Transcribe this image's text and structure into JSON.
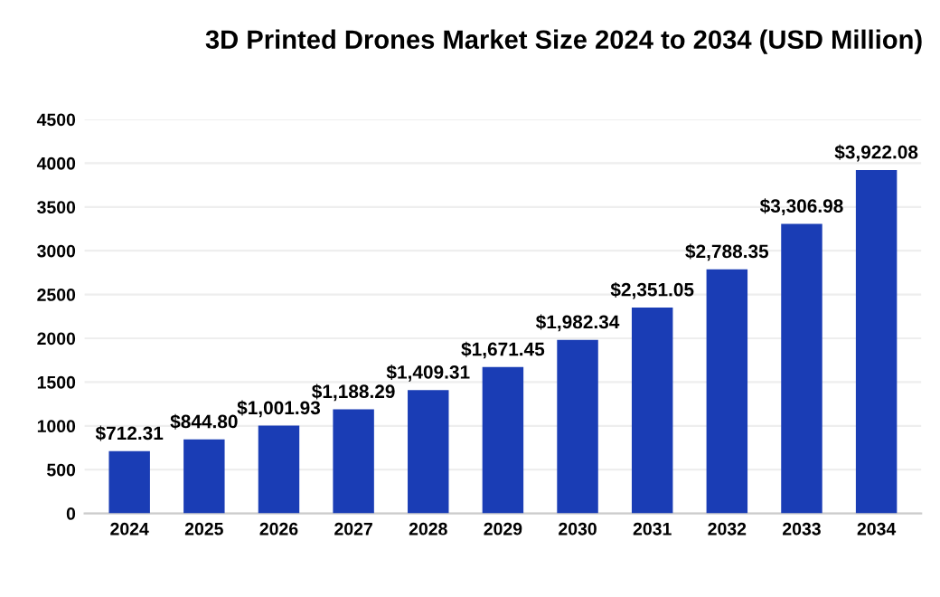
{
  "chart_data": {
    "type": "bar",
    "title": "3D Printed Drones Market Size 2024 to 2034 (USD Million)",
    "categories": [
      "2024",
      "2025",
      "2026",
      "2027",
      "2028",
      "2029",
      "2030",
      "2031",
      "2032",
      "2033",
      "2034"
    ],
    "values": [
      712.31,
      844.8,
      1001.93,
      1188.29,
      1409.31,
      1671.45,
      1982.34,
      2351.05,
      2788.35,
      3306.98,
      3922.08
    ],
    "value_labels": [
      "$712.31",
      "$844.80",
      "$1,001.93",
      "$1,188.29",
      "$1,409.31",
      "$1,671.45",
      "$1,982.34",
      "$2,351.05",
      "$2,788.35",
      "$3,306.98",
      "$3,922.08"
    ],
    "color": "#1a3db5",
    "ylim": [
      0,
      4500
    ],
    "yticks": [
      0,
      500,
      1000,
      1500,
      2000,
      2500,
      3000,
      3500,
      4000,
      4500
    ],
    "grid": "y"
  }
}
